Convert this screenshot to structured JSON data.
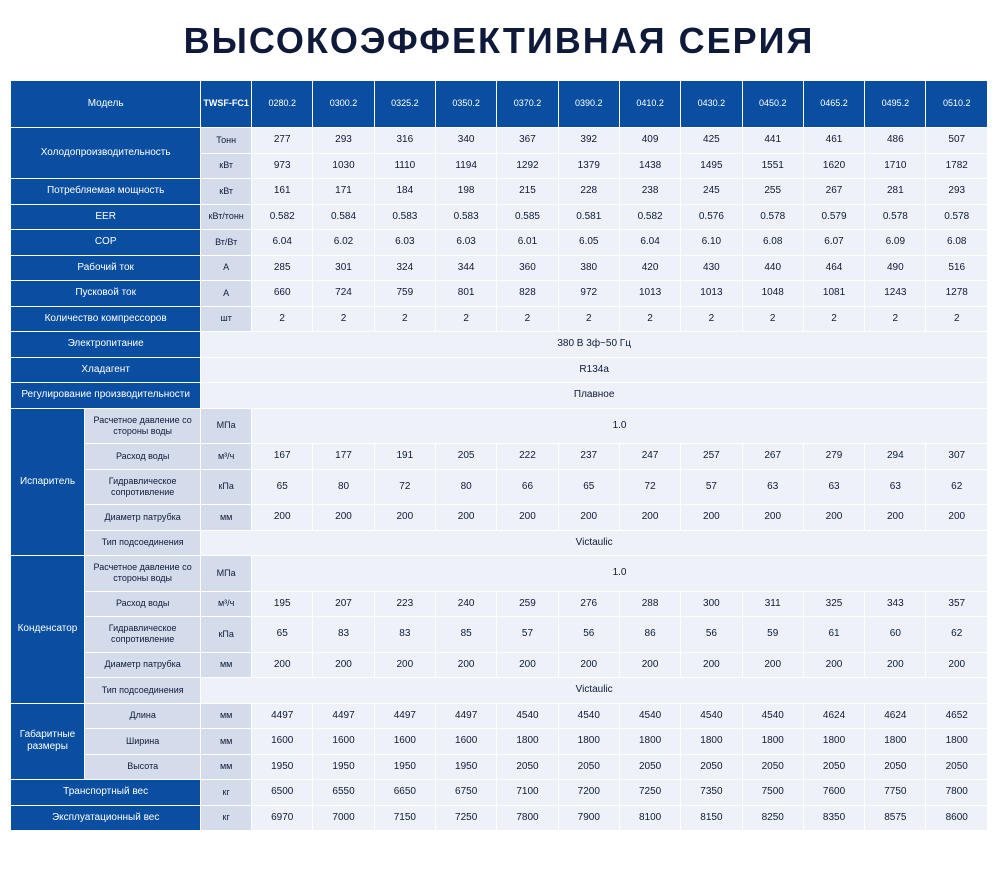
{
  "title": "ВЫСОКОЭФФЕКТИВНАЯ СЕРИЯ",
  "colors": {
    "header_bg": "#0a4ea1",
    "header_fg": "#ffffff",
    "unit_bg": "#d4dcec",
    "val_bg": "#eef1f8",
    "text": "#0f1a3a",
    "border": "#ffffff"
  },
  "model_label": "Модель",
  "model_code": "TWSF-FC1",
  "models": [
    "0280.2",
    "0300.2",
    "0325.2",
    "0350.2",
    "0370.2",
    "0390.2",
    "0410.2",
    "0430.2",
    "0450.2",
    "0465.2",
    "0495.2",
    "0510.2"
  ],
  "rows": [
    {
      "label": "Холодопроизводительность",
      "sub": null,
      "unit": "Тонн",
      "rowspan": 2,
      "values": [
        "277",
        "293",
        "316",
        "340",
        "367",
        "392",
        "409",
        "425",
        "441",
        "461",
        "486",
        "507"
      ]
    },
    {
      "label": null,
      "sub": null,
      "unit": "кВт",
      "values": [
        "973",
        "1030",
        "1110",
        "1194",
        "1292",
        "1379",
        "1438",
        "1495",
        "1551",
        "1620",
        "1710",
        "1782"
      ]
    },
    {
      "label": "Потребляемая мощность",
      "sub": null,
      "unit": "кВт",
      "values": [
        "161",
        "171",
        "184",
        "198",
        "215",
        "228",
        "238",
        "245",
        "255",
        "267",
        "281",
        "293"
      ]
    },
    {
      "label": "EER",
      "sub": null,
      "unit": "кВт/тонн",
      "values": [
        "0.582",
        "0.584",
        "0.583",
        "0.583",
        "0.585",
        "0.581",
        "0.582",
        "0.576",
        "0.578",
        "0.579",
        "0.578",
        "0.578"
      ]
    },
    {
      "label": "COP",
      "sub": null,
      "unit": "Вт/Вт",
      "values": [
        "6.04",
        "6.02",
        "6.03",
        "6.03",
        "6.01",
        "6.05",
        "6.04",
        "6.10",
        "6.08",
        "6.07",
        "6.09",
        "6.08"
      ]
    },
    {
      "label": "Рабочий ток",
      "sub": null,
      "unit": "A",
      "values": [
        "285",
        "301",
        "324",
        "344",
        "360",
        "380",
        "420",
        "430",
        "440",
        "464",
        "490",
        "516"
      ]
    },
    {
      "label": "Пусковой ток",
      "sub": null,
      "unit": "A",
      "values": [
        "660",
        "724",
        "759",
        "801",
        "828",
        "972",
        "1013",
        "1013",
        "1048",
        "1081",
        "1243",
        "1278"
      ]
    },
    {
      "label": "Количество компрессоров",
      "sub": null,
      "unit": "шт",
      "values": [
        "2",
        "2",
        "2",
        "2",
        "2",
        "2",
        "2",
        "2",
        "2",
        "2",
        "2",
        "2"
      ]
    },
    {
      "label": "Электропитание",
      "merged": "380 В 3ф~50 Гц"
    },
    {
      "label": "Хладагент",
      "merged": "R134a"
    },
    {
      "label": "Регулирование производительности",
      "merged": "Плавное"
    }
  ],
  "evaporator": {
    "group": "Испаритель",
    "rows": [
      {
        "sub": "Расчетное давление со стороны воды",
        "unit": "МПа",
        "merged": "1.0"
      },
      {
        "sub": "Расход воды",
        "unit": "м³/ч",
        "values": [
          "167",
          "177",
          "191",
          "205",
          "222",
          "237",
          "247",
          "257",
          "267",
          "279",
          "294",
          "307"
        ]
      },
      {
        "sub": "Гидравлическое сопротивление",
        "unit": "кПа",
        "values": [
          "65",
          "80",
          "72",
          "80",
          "66",
          "65",
          "72",
          "57",
          "63",
          "63",
          "63",
          "62"
        ]
      },
      {
        "sub": "Диаметр патрубка",
        "unit": "мм",
        "values": [
          "200",
          "200",
          "200",
          "200",
          "200",
          "200",
          "200",
          "200",
          "200",
          "200",
          "200",
          "200"
        ]
      },
      {
        "sub": "Тип подсоединения",
        "unit": null,
        "merged": "Victaulic"
      }
    ]
  },
  "condenser": {
    "group": "Конденсатор",
    "rows": [
      {
        "sub": "Расчетное давление со стороны воды",
        "unit": "МПа",
        "merged": "1.0"
      },
      {
        "sub": "Расход воды",
        "unit": "м³/ч",
        "values": [
          "195",
          "207",
          "223",
          "240",
          "259",
          "276",
          "288",
          "300",
          "311",
          "325",
          "343",
          "357"
        ]
      },
      {
        "sub": "Гидравлическое сопротивление",
        "unit": "кПа",
        "values": [
          "65",
          "83",
          "83",
          "85",
          "57",
          "56",
          "86",
          "56",
          "59",
          "61",
          "60",
          "62"
        ]
      },
      {
        "sub": "Диаметр патрубка",
        "unit": "мм",
        "values": [
          "200",
          "200",
          "200",
          "200",
          "200",
          "200",
          "200",
          "200",
          "200",
          "200",
          "200",
          "200"
        ]
      },
      {
        "sub": "Тип подсоединения",
        "unit": null,
        "merged": "Victaulic"
      }
    ]
  },
  "dimensions": {
    "group": "Габаритные размеры",
    "rows": [
      {
        "sub": "Длина",
        "unit": "мм",
        "values": [
          "4497",
          "4497",
          "4497",
          "4497",
          "4540",
          "4540",
          "4540",
          "4540",
          "4540",
          "4624",
          "4624",
          "4652"
        ]
      },
      {
        "sub": "Ширина",
        "unit": "мм",
        "values": [
          "1600",
          "1600",
          "1600",
          "1600",
          "1800",
          "1800",
          "1800",
          "1800",
          "1800",
          "1800",
          "1800",
          "1800"
        ]
      },
      {
        "sub": "Высота",
        "unit": "мм",
        "values": [
          "1950",
          "1950",
          "1950",
          "1950",
          "2050",
          "2050",
          "2050",
          "2050",
          "2050",
          "2050",
          "2050",
          "2050"
        ]
      }
    ]
  },
  "transport_weight": {
    "label": "Транспортный вес",
    "unit": "кг",
    "values": [
      "6500",
      "6550",
      "6650",
      "6750",
      "7100",
      "7200",
      "7250",
      "7350",
      "7500",
      "7600",
      "7750",
      "7800"
    ]
  },
  "operating_weight": {
    "label": "Эксплуатационный вес",
    "unit": "кг",
    "values": [
      "6970",
      "7000",
      "7150",
      "7250",
      "7800",
      "7900",
      "8100",
      "8150",
      "8250",
      "8350",
      "8575",
      "8600"
    ]
  }
}
